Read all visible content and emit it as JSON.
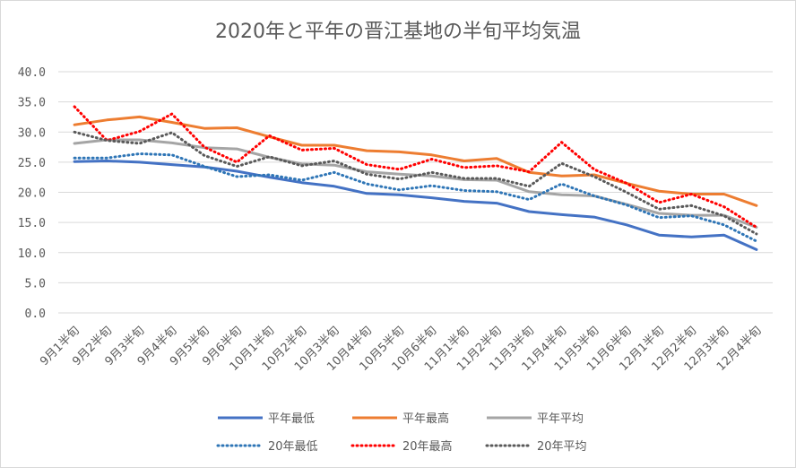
{
  "chart_data": {
    "type": "line",
    "title": "2020年と平年の晋江基地の半旬平均気温",
    "xlabel": "",
    "ylabel": "",
    "ylim": [
      0,
      40
    ],
    "yticks": [
      "0.0",
      "5.0",
      "10.0",
      "15.0",
      "20.0",
      "25.0",
      "30.0",
      "35.0",
      "40.0"
    ],
    "grid": true,
    "legend_position": "bottom",
    "categories": [
      "9月1半旬",
      "9月2半旬",
      "9月3半旬",
      "9月4半旬",
      "9月5半旬",
      "9月6半旬",
      "10月1半旬",
      "10月2半旬",
      "10月3半旬",
      "10月4半旬",
      "10月5半旬",
      "10月6半旬",
      "11月1半旬",
      "11月2半旬",
      "11月3半旬",
      "11月4半旬",
      "11月5半旬",
      "11月6半旬",
      "12月1半旬",
      "12月2半旬",
      "12月3半旬",
      "12月4半旬"
    ],
    "series": [
      {
        "name": "平年最低",
        "color": "#4472c4",
        "dash": "solid",
        "values": [
          25.1,
          25.2,
          25.0,
          24.6,
          24.2,
          23.5,
          22.5,
          21.6,
          21.0,
          19.8,
          19.6,
          19.1,
          18.5,
          18.2,
          16.8,
          16.3,
          15.9,
          14.6,
          12.9,
          12.6,
          12.9,
          10.5
        ]
      },
      {
        "name": "平年最高",
        "color": "#ed7d31",
        "dash": "solid",
        "values": [
          31.2,
          32.0,
          32.5,
          31.6,
          30.6,
          30.7,
          29.2,
          27.8,
          27.8,
          26.9,
          26.7,
          26.2,
          25.2,
          25.6,
          23.3,
          22.7,
          22.9,
          21.5,
          20.2,
          19.7,
          19.7,
          17.8
        ]
      },
      {
        "name": "平年平均",
        "color": "#a5a5a5",
        "dash": "solid",
        "values": [
          28.1,
          28.7,
          28.7,
          28.2,
          27.4,
          27.2,
          25.8,
          24.7,
          24.5,
          23.4,
          23.0,
          22.7,
          22.1,
          22.0,
          20.1,
          19.6,
          19.4,
          18.0,
          16.5,
          16.2,
          16.2,
          14.2
        ]
      },
      {
        "name": "20年最低",
        "color": "#2e75b6",
        "dash": "dotted",
        "values": [
          25.7,
          25.7,
          26.4,
          26.2,
          24.3,
          22.6,
          22.9,
          22.0,
          23.3,
          21.4,
          20.4,
          21.1,
          20.3,
          20.1,
          18.8,
          21.4,
          19.4,
          17.9,
          15.8,
          16.1,
          14.6,
          11.9
        ]
      },
      {
        "name": "20年最高",
        "color": "#ff0000",
        "dash": "dotted",
        "values": [
          34.2,
          28.6,
          30.1,
          33.0,
          27.5,
          25.0,
          29.4,
          27.0,
          27.3,
          24.6,
          23.8,
          25.5,
          24.1,
          24.4,
          23.4,
          28.3,
          23.8,
          21.5,
          18.3,
          19.7,
          17.6,
          14.2
        ]
      },
      {
        "name": "20年平均",
        "color": "#595959",
        "dash": "dotted",
        "values": [
          30.0,
          28.6,
          28.1,
          29.9,
          26.1,
          24.3,
          25.9,
          24.4,
          25.2,
          23.0,
          22.2,
          23.3,
          22.3,
          22.3,
          21.0,
          24.8,
          22.6,
          20.0,
          17.2,
          17.8,
          16.1,
          13.1
        ]
      }
    ]
  }
}
